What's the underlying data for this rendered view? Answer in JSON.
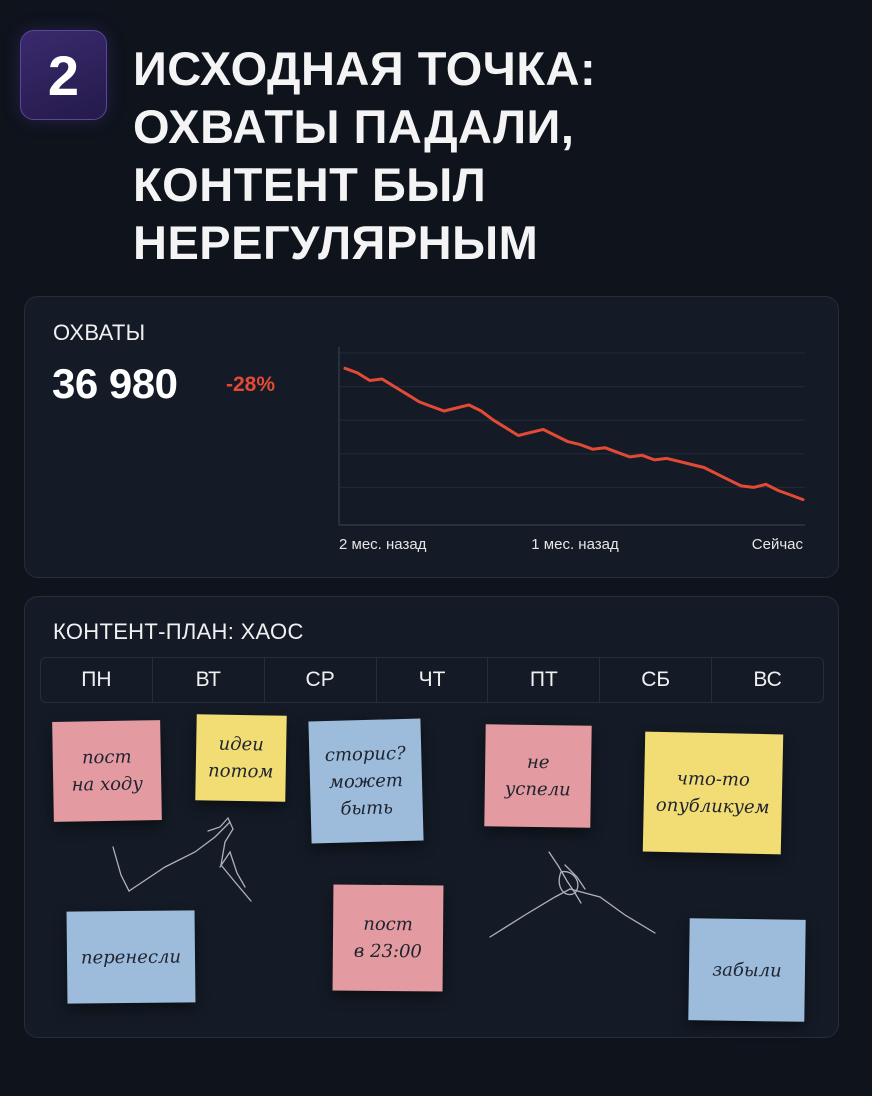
{
  "header": {
    "step_number": "2",
    "title_lines": [
      "ИСХОДНАЯ ТОЧКА:",
      "ОХВАТЫ ПАДАЛИ,",
      "КОНТЕНТ БЫЛ",
      "НЕРЕГУЛЯРНЫМ"
    ]
  },
  "reach": {
    "title": "ОХВАТЫ",
    "value": "36 980",
    "delta": "-28%"
  },
  "chart_data": {
    "type": "line",
    "title": "",
    "x_tick_labels": [
      "2 мес. назад",
      "1 мес. назад",
      "Сейчас"
    ],
    "series": [
      {
        "color": "#e24a35",
        "values": [
          100,
          97,
          92,
          93,
          88,
          83,
          78,
          75,
          72,
          74,
          76,
          72,
          66,
          61,
          56,
          58,
          60,
          56,
          52,
          50,
          47,
          48,
          45,
          42,
          43,
          40,
          41,
          39,
          37,
          35,
          31,
          27,
          23,
          22,
          24,
          20,
          17,
          14
        ]
      }
    ],
    "ylim": [
      0,
      110
    ],
    "grid": true
  },
  "plan": {
    "title": "КОНТЕНТ-ПЛАН: ХАОС",
    "days": [
      "ПН",
      "ВТ",
      "СР",
      "ЧТ",
      "ПТ",
      "СБ",
      "ВС"
    ],
    "notes": [
      {
        "text": "пост\nна ходу",
        "color": "pink"
      },
      {
        "text": "идеи\nпотом",
        "color": "yellow"
      },
      {
        "text": "сторис?\nможет\nбыть",
        "color": "blue"
      },
      {
        "text": "не\nуспели",
        "color": "pink"
      },
      {
        "text": "что-то\nопубликуем",
        "color": "yellow"
      },
      {
        "text": "перенесли",
        "color": "blue"
      },
      {
        "text": "пост\nв 23:00",
        "color": "pink"
      },
      {
        "text": "забыли",
        "color": "blue"
      }
    ]
  }
}
